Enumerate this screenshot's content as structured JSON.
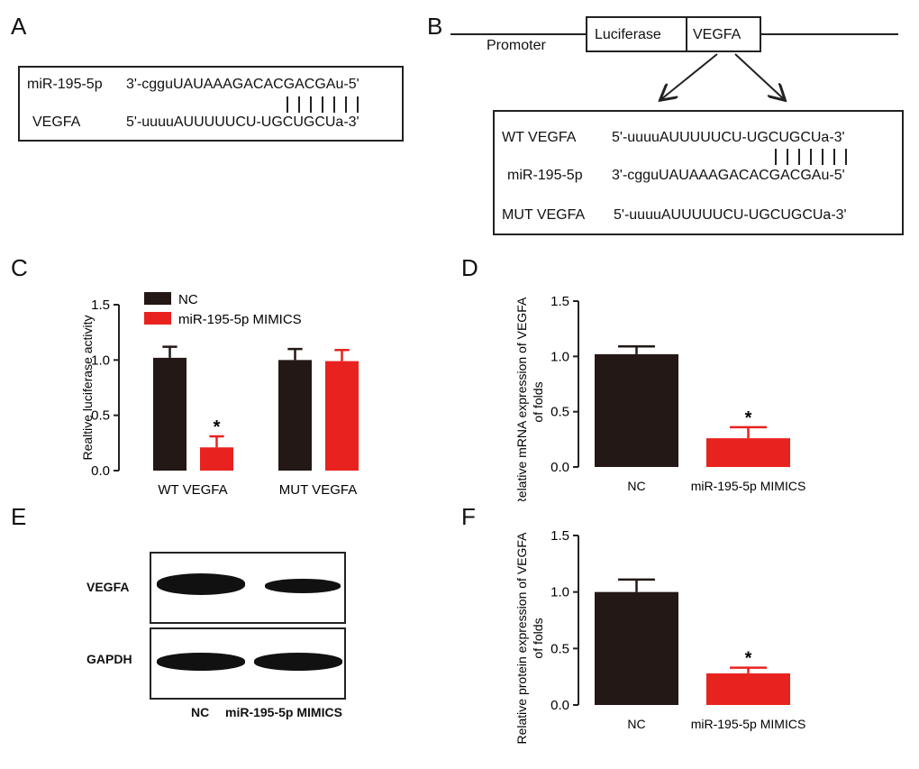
{
  "panels": {
    "A": {
      "letter": "A",
      "mir_label": "miR-195-5p",
      "mir_seq": "3'-cgguUAUAAAGACACGACGAu-5'",
      "target_label": "VEGFA",
      "target_seq": "5'-uuuuAUUUUUCU-UGCUGCUa-3'"
    },
    "B": {
      "letter": "B",
      "promoter": "Promoter",
      "luciferase": "Luciferase",
      "vegfa": "VEGFA",
      "wt_label": "WT  VEGFA",
      "wt_seq": "5'-uuuuAUUUUUCU-UGCUGCUa-3'",
      "mir_label": "miR-195-5p",
      "mir_seq": "3'-cgguUAUAAAGACACGACGAu-5'",
      "mut_label": "MUT  VEGFA",
      "mut_seq": "5'-uuuuAUUUUUCU-UGCUGCUa-3'"
    },
    "C": {
      "letter": "C"
    },
    "D": {
      "letter": "D"
    },
    "E": {
      "letter": "E",
      "row1": "VEGFA",
      "row2": "GAPDH",
      "col1": "NC",
      "col2": "miR-195-5p MIMICS"
    },
    "F": {
      "letter": "F"
    }
  },
  "colors": {
    "black_bar": "#231815",
    "red_bar": "#e8231f"
  },
  "chart_data": [
    {
      "id": "C",
      "type": "bar",
      "ylabel": "Realtive luciferase activity",
      "ylim": [
        0,
        1.5
      ],
      "yticks": [
        "0.0",
        "0.5",
        "1.0",
        "1.5"
      ],
      "group_labels": [
        "WT  VEGFA",
        "MUT  VEGFA"
      ],
      "series": [
        {
          "name": "NC",
          "values": [
            1.02,
            1.0
          ],
          "errors": [
            0.1,
            0.1
          ]
        },
        {
          "name": "miR-195-5p MIMICS",
          "values": [
            0.21,
            0.99
          ],
          "errors": [
            0.1,
            0.1
          ]
        }
      ],
      "annotations": [
        "*"
      ],
      "legend": "top-left"
    },
    {
      "id": "D",
      "type": "bar",
      "ylabel": "Relative mRNA expression of VEGFA of folds",
      "ylim": [
        0,
        1.5
      ],
      "yticks": [
        "0.0",
        "0.5",
        "1.0",
        "1.5"
      ],
      "categories": [
        "NC",
        "miR-195-5p MIMICS"
      ],
      "values": [
        1.02,
        0.26
      ],
      "errors": [
        0.07,
        0.1
      ],
      "annotations": [
        "*"
      ]
    },
    {
      "id": "F",
      "type": "bar",
      "ylabel": "Relative protein expression of VEGFA of folds",
      "ylim": [
        0,
        1.5
      ],
      "yticks": [
        "0.0",
        "0.5",
        "1.0",
        "1.5"
      ],
      "categories": [
        "NC",
        "miR-195-5p MIMICS"
      ],
      "values": [
        1.0,
        0.28
      ],
      "errors": [
        0.11,
        0.05
      ],
      "annotations": [
        "*"
      ]
    }
  ]
}
